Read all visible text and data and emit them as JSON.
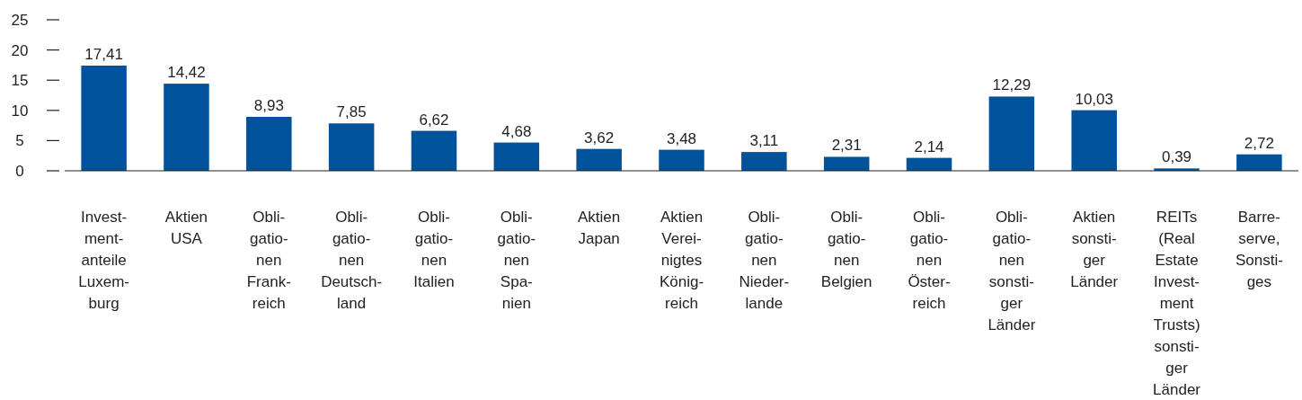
{
  "chart_data": {
    "type": "bar",
    "categories": [
      "Invest-\nment-\nanteile\nLuxem-\nburg",
      "Aktien\nUSA",
      "Obli-\ngatio-\nnen\nFrank-\nreich",
      "Obli-\ngatio-\nnen\nDeutsch-\nland",
      "Obli-\ngatio-\nnen\nItalien",
      "Obli-\ngatio-\nnen\nSpa-\nnien",
      "Aktien\nJapan",
      "Aktien\nVerei-\nnigtes\nKönig-\nreich",
      "Obli-\ngatio-\nnen\nNieder-\nlande",
      "Obli-\ngatio-\nnen\nBelgien",
      "Obli-\ngatio-\nnen\nÖster-\nreich",
      "Obli-\ngatio-\nnen\nsonsti-\nger\nLänder",
      "Aktien\nsonsti-\nger\nLänder",
      "REITs\n(Real\nEstate\nInvest-\nment\nTrusts)\nsonsti-\nger\nLänder",
      "Barre-\nserve,\nSonsti-\nges"
    ],
    "values": [
      17.41,
      14.42,
      8.93,
      7.85,
      6.62,
      4.68,
      3.62,
      3.48,
      3.11,
      2.31,
      2.14,
      12.29,
      10.03,
      0.39,
      2.72
    ],
    "value_labels": [
      "17,41",
      "14,42",
      "8,93",
      "7,85",
      "6,62",
      "4,68",
      "3,62",
      "3,48",
      "3,11",
      "2,31",
      "2,14",
      "12,29",
      "10,03",
      "0,39",
      "2,72"
    ],
    "color": "#00529b",
    "ylim": [
      0,
      25
    ],
    "yticks": [
      0,
      5,
      10,
      15,
      20,
      25
    ]
  }
}
